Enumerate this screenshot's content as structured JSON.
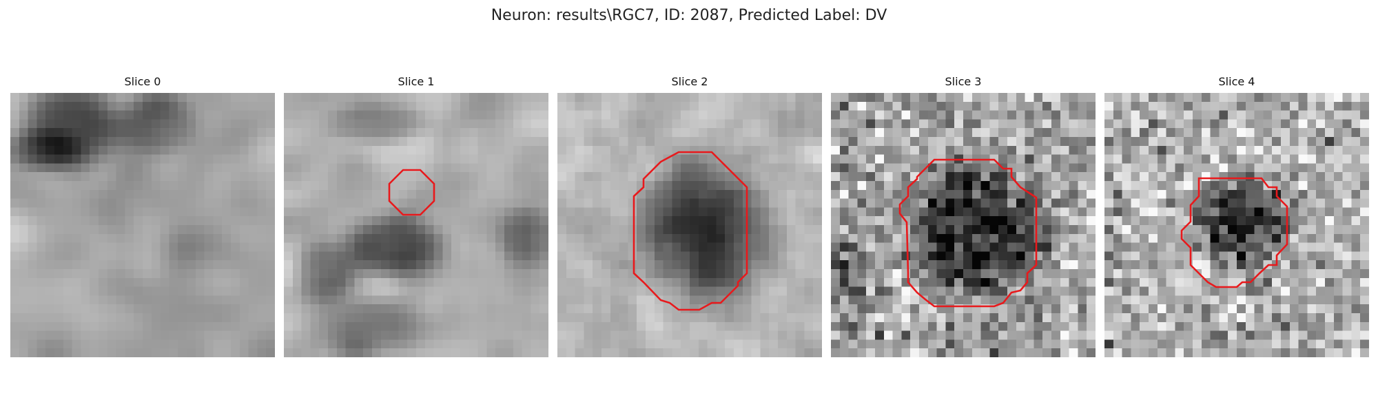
{
  "figure": {
    "title": "Neuron: results\\RGC7, ID: 2087, Predicted Label: DV"
  },
  "colors": {
    "background": "#ffffff",
    "outline": "#e8191c",
    "image_palette": "grayscale"
  },
  "slices": [
    {
      "label": "Slice 0",
      "has_outline": false
    },
    {
      "label": "Slice 1",
      "has_outline": true
    },
    {
      "label": "Slice 2",
      "has_outline": true
    },
    {
      "label": "Slice 3",
      "has_outline": true
    },
    {
      "label": "Slice 4",
      "has_outline": true
    }
  ]
}
